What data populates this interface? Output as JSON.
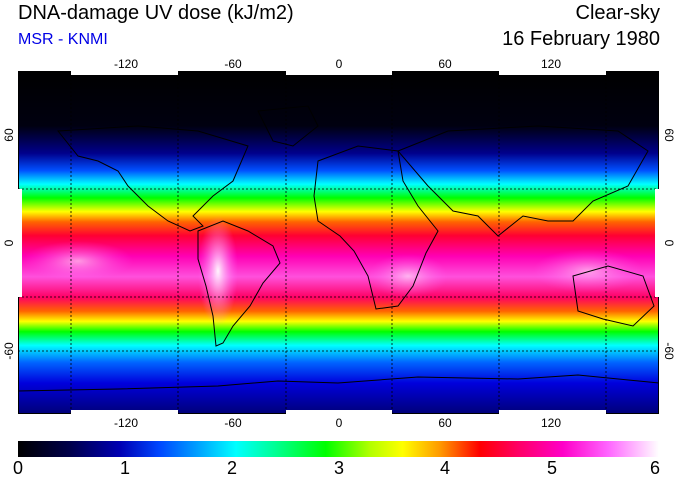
{
  "header": {
    "title": "DNA-damage UV dose (kJ/m2)",
    "source": "MSR - KNMI",
    "condition": "Clear-sky",
    "date": "16 February 1980"
  },
  "map": {
    "longitude_labels": [
      "-120",
      "-60",
      "0",
      "60",
      "120"
    ],
    "latitude_labels": [
      "60",
      "0",
      "-60"
    ],
    "gridlines": "dotted, every 30 degrees",
    "colors": {
      "polar": "#000000",
      "midlat_south": "#0000c8",
      "green_band": "#00ff00",
      "red_band": "#ff0000",
      "tropics": "#ff00c8",
      "peak": "#ffffff",
      "coastline": "#000000"
    }
  },
  "colorbar": {
    "labels": [
      "0",
      "1",
      "2",
      "3",
      "4",
      "5",
      "6"
    ]
  }
}
